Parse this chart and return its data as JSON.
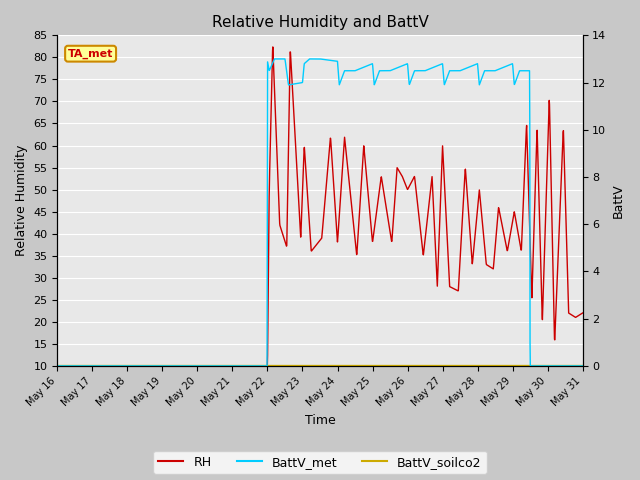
{
  "title": "Relative Humidity and BattV",
  "ylabel_left": "Relative Humidity",
  "ylabel_right": "BattV",
  "xlabel": "Time",
  "ylim_left": [
    10,
    85
  ],
  "ylim_right": [
    0,
    14
  ],
  "yticks_left": [
    10,
    15,
    20,
    25,
    30,
    35,
    40,
    45,
    50,
    55,
    60,
    65,
    70,
    75,
    80,
    85
  ],
  "yticks_right": [
    0,
    2,
    4,
    6,
    8,
    10,
    12,
    14
  ],
  "bg_color": "#e8e8e8",
  "grid_color": "#ffffff",
  "annotation_text": "TA_met",
  "annotation_color": "#cc0000",
  "annotation_bg": "#ffff99",
  "annotation_border": "#cc8800",
  "rh_color": "#cc0000",
  "battv_met_color": "#00ccff",
  "battv_soilco2_color": "#ccaa00",
  "legend_rh": "RH",
  "legend_battv_met": "BattV_met",
  "legend_battv_soilco2": "BattV_soilco2",
  "figsize": [
    6.4,
    4.8
  ],
  "dpi": 100,
  "fig_bg": "#c8c8c8",
  "xtick_labels": [
    "May 16",
    "May 17",
    "May 18",
    "May 19",
    "May 20",
    "May 21",
    "May 22",
    "May 23",
    "May 24",
    "May 25",
    "May 26",
    "May 27",
    "May 28",
    "May 29",
    "May 30",
    "May 31"
  ],
  "xtick_fontsize": 7,
  "ytick_fontsize": 8,
  "title_fontsize": 11,
  "label_fontsize": 9,
  "legend_fontsize": 9
}
